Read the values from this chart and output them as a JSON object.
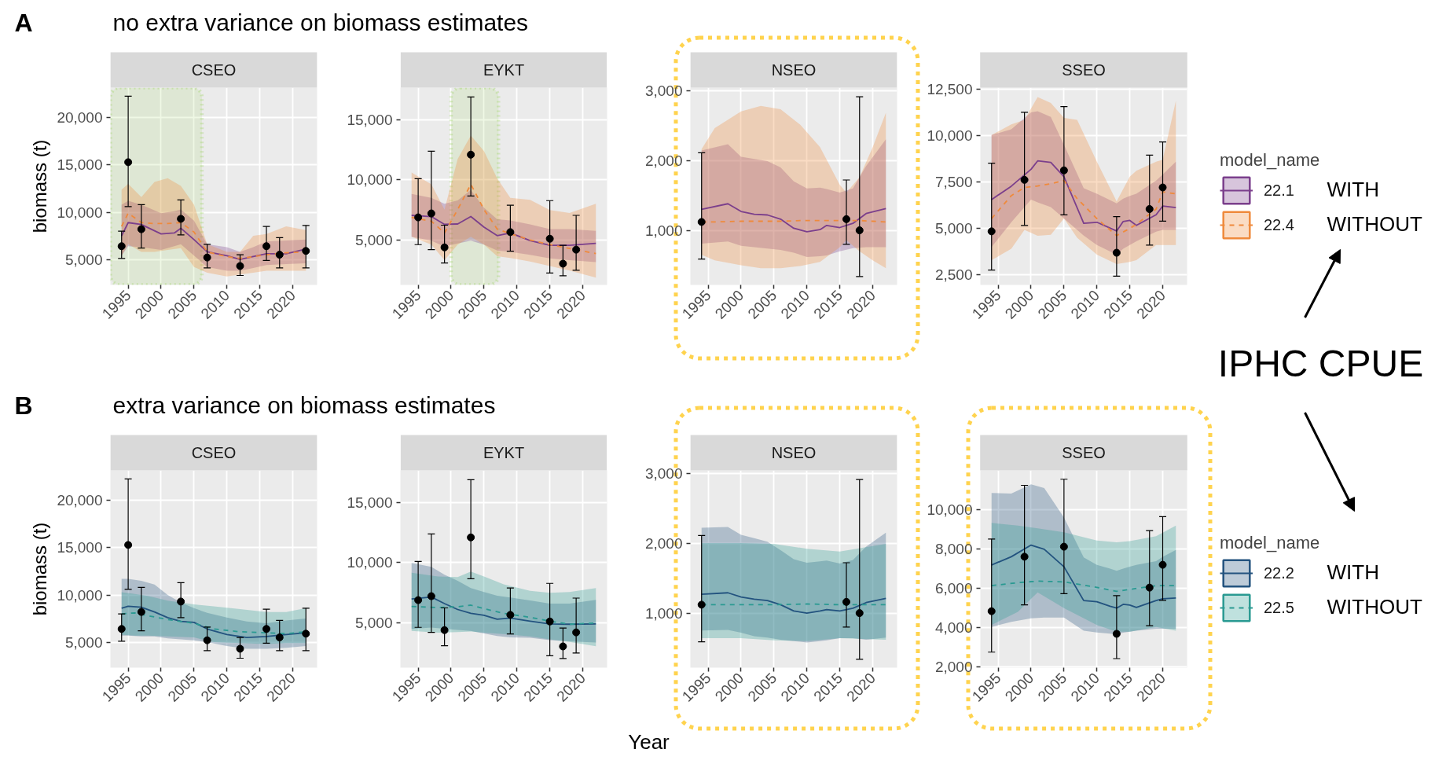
{
  "chart_data": [
    {
      "type": "line",
      "title": "CSEO",
      "ylabel": "biomass (t)",
      "annotations": [
        "A",
        "no extra variance on biomass estimates"
      ],
      "xlim": [
        1992.3,
        2023.7
      ],
      "xticks": [
        1995,
        2000,
        2005,
        2010,
        2015,
        2020
      ],
      "ylim": [
        2300,
        23200
      ],
      "yticks": [
        {
          "value": 5000,
          "label": "5,000"
        },
        {
          "value": 10000,
          "label": "10,000"
        },
        {
          "value": 15000,
          "label": "15,000"
        },
        {
          "value": 20000,
          "label": "20,000"
        }
      ],
      "grid": true,
      "bands": [
        {
          "axis": "x",
          "from": 1992.3,
          "to": 2006.2,
          "color": "#92d050"
        }
      ],
      "series": [
        {
          "color": "#7b3f8c",
          "line_style": "solid",
          "x": [
            1994,
            1995,
            1997,
            2000,
            2002,
            2003,
            2005,
            2007,
            2010,
            2012,
            2014,
            2016,
            2019,
            2022
          ],
          "values": [
            7500,
            8900,
            8700,
            7700,
            7800,
            8300,
            7100,
            5800,
            5400,
            5000,
            5300,
            5600,
            5600,
            6100
          ],
          "lower": [
            5400,
            6400,
            6300,
            6000,
            6400,
            6600,
            5400,
            4200,
            3800,
            3800,
            4100,
            4400,
            4500,
            4600
          ],
          "upper": [
            10800,
            11200,
            10800,
            9900,
            10100,
            10300,
            9100,
            6600,
            6300,
            5800,
            6300,
            6900,
            7000,
            7100
          ]
        },
        {
          "color": "#ef8a3c",
          "line_style": "dashed",
          "x": [
            1994,
            1995,
            1997,
            1999,
            2001,
            2003,
            2005,
            2007,
            2010,
            2012,
            2014,
            2016,
            2019,
            2022
          ],
          "values": [
            8500,
            9900,
            8900,
            8800,
            8800,
            8900,
            7900,
            5800,
            5300,
            5100,
            5300,
            5500,
            5700,
            5800
          ],
          "lower": [
            5400,
            6600,
            5800,
            5800,
            6000,
            6200,
            4200,
            3600,
            3200,
            3400,
            3600,
            3800,
            3800,
            3800
          ],
          "upper": [
            12400,
            13000,
            11600,
            13200,
            13600,
            12800,
            10800,
            6600,
            5800,
            5800,
            7500,
            7700,
            8500,
            8100
          ]
        },
        {
          "type": "scatter",
          "color": "#000000",
          "marker": "circle",
          "x": [
            1994,
            1995,
            1997,
            2003,
            2007,
            2012,
            2016,
            2018,
            2022
          ],
          "values": [
            6400,
            15300,
            8200,
            9300,
            5200,
            4300,
            6400,
            5500,
            5900
          ],
          "errors": [
            [
              5100,
              8000
            ],
            [
              10600,
              22300
            ],
            [
              6200,
              10800
            ],
            [
              7600,
              11300
            ],
            [
              4100,
              6600
            ],
            [
              3300,
              5500
            ],
            [
              4900,
              8500
            ],
            [
              4100,
              7300
            ],
            [
              4100,
              8600
            ]
          ]
        }
      ]
    },
    {
      "type": "line",
      "title": "EYKT",
      "xlim": [
        1992.3,
        2023.7
      ],
      "xticks": [
        1995,
        2000,
        2005,
        2010,
        2015,
        2020
      ],
      "ylim": [
        1250,
        17700
      ],
      "yticks": [
        {
          "value": 5000,
          "label": "5,000"
        },
        {
          "value": 10000,
          "label": "10,000"
        },
        {
          "value": 15000,
          "label": "15,000"
        }
      ],
      "grid": true,
      "bands": [
        {
          "axis": "x",
          "from": 2000,
          "to": 2007.2,
          "color": "#92d050"
        }
      ],
      "series": [
        {
          "color": "#7b3f8c",
          "line_style": "solid",
          "x": [
            1994,
            1997,
            1999,
            2001,
            2003,
            2005,
            2007,
            2009,
            2012,
            2015,
            2018,
            2022
          ],
          "values": [
            7050,
            6950,
            6300,
            6330,
            6950,
            6070,
            5360,
            5580,
            4940,
            4550,
            4550,
            4710
          ],
          "lower": [
            5260,
            4940,
            4450,
            4700,
            4940,
            4610,
            4120,
            4000,
            3750,
            3470,
            3310,
            3150
          ],
          "upper": [
            8830,
            8510,
            8020,
            8300,
            9160,
            7690,
            6720,
            6620,
            6300,
            5910,
            5910,
            5750
          ]
        },
        {
          "color": "#ef8a3c",
          "line_style": "dashed",
          "x": [
            1994,
            1997,
            1999,
            2001,
            2003,
            2005,
            2007,
            2009,
            2012,
            2015,
            2018,
            2022
          ],
          "values": [
            6880,
            6560,
            5580,
            7530,
            9640,
            7530,
            5910,
            5520,
            5000,
            4610,
            4290,
            3860
          ],
          "lower": [
            5260,
            4610,
            3310,
            4610,
            5260,
            4610,
            3640,
            3500,
            3200,
            2820,
            2450,
            1850
          ],
          "upper": [
            10620,
            9640,
            7530,
            11750,
            13700,
            12400,
            10130,
            8510,
            8340,
            7500,
            7250,
            8020
          ]
        },
        {
          "type": "scatter",
          "color": "#000000",
          "marker": "circle",
          "x": [
            1995,
            1997,
            1999,
            2003,
            2009,
            2015,
            2017,
            2019
          ],
          "values": [
            6880,
            7210,
            4380,
            12110,
            5650,
            5100,
            3020,
            4190
          ],
          "errors": [
            [
              4610,
              10100
            ],
            [
              4190,
              12400
            ],
            [
              3080,
              6230
            ],
            [
              8670,
              16920
            ],
            [
              4060,
              7890
            ],
            [
              2240,
              8280
            ],
            [
              2010,
              4550
            ],
            [
              2470,
              7050
            ]
          ]
        }
      ]
    },
    {
      "type": "line",
      "title": "NSEO",
      "xlim": [
        1992.3,
        2023.7
      ],
      "xticks": [
        1995,
        2000,
        2005,
        2010,
        2015,
        2020
      ],
      "ylim": [
        220,
        3040
      ],
      "yticks": [
        {
          "value": 1000,
          "label": "1,000"
        },
        {
          "value": 2000,
          "label": "2,000"
        },
        {
          "value": 3000,
          "label": "3,000"
        }
      ],
      "grid": true,
      "series": [
        {
          "color": "#7b3f8c",
          "line_style": "solid",
          "x": [
            1994,
            1998,
            2000,
            2002,
            2004,
            2006,
            2008,
            2010,
            2012,
            2013,
            2015,
            2017,
            2019,
            2022
          ],
          "values": [
            1300,
            1380,
            1270,
            1230,
            1220,
            1160,
            1030,
            980,
            1010,
            1070,
            1040,
            1100,
            1240,
            1310
          ],
          "lower": [
            810,
            840,
            780,
            760,
            740,
            720,
            680,
            620,
            630,
            640,
            700,
            745,
            760,
            760
          ],
          "upper": [
            2140,
            2230,
            2050,
            2020,
            1990,
            1900,
            1700,
            1600,
            1610,
            1590,
            1540,
            1600,
            1920,
            2300
          ]
        },
        {
          "color": "#ef8a3c",
          "line_style": "dashed",
          "x": [
            1994,
            1996,
            2000,
            2003,
            2006,
            2009,
            2012,
            2015,
            2016,
            2018,
            2020,
            2022
          ],
          "values": [
            1120,
            1120,
            1130,
            1130,
            1130,
            1140,
            1140,
            1140,
            1140,
            1140,
            1130,
            1120
          ],
          "lower": [
            650,
            570,
            500,
            460,
            460,
            490,
            550,
            760,
            860,
            700,
            570,
            460
          ],
          "upper": [
            2160,
            2460,
            2700,
            2780,
            2730,
            2510,
            2190,
            1650,
            1540,
            1760,
            2190,
            2680
          ]
        },
        {
          "type": "scatter",
          "color": "#000000",
          "marker": "circle",
          "x": [
            1994,
            2016,
            2018
          ],
          "values": [
            1120,
            1160,
            1000
          ],
          "errors": [
            [
              590,
              2110
            ],
            [
              800,
              1720
            ],
            [
              340,
              2910
            ]
          ]
        }
      ]
    },
    {
      "type": "line",
      "title": "SSEO",
      "legend": "right",
      "legend_title": "model_name",
      "annotations": [
        "WITH",
        "WITHOUT",
        "IPHC CPUE"
      ],
      "xlim": [
        1992.3,
        2023.7
      ],
      "xticks": [
        1995,
        2000,
        2005,
        2010,
        2015,
        2020
      ],
      "ylim": [
        1960,
        12570
      ],
      "yticks": [
        {
          "value": 2500,
          "label": "2,500"
        },
        {
          "value": 5000,
          "label": "5,000"
        },
        {
          "value": 7500,
          "label": "7,500"
        },
        {
          "value": 10000,
          "label": "10,000"
        },
        {
          "value": 12500,
          "label": "12,500"
        }
      ],
      "grid": true,
      "series": [
        {
          "name": "22.1",
          "color": "#7b3f8c",
          "line_style": "solid",
          "x": [
            1994,
            1997,
            2000,
            2001,
            2003,
            2005,
            2008,
            2010,
            2013,
            2014,
            2015,
            2016,
            2019,
            2020,
            2022
          ],
          "values": [
            6550,
            7270,
            8180,
            8630,
            8550,
            7780,
            5270,
            5330,
            4860,
            5370,
            5430,
            5160,
            5730,
            6200,
            6120
          ],
          "lower": [
            4000,
            5330,
            6550,
            6400,
            6140,
            5530,
            4610,
            4100,
            3590,
            3900,
            4100,
            4310,
            4820,
            4920,
            4920
          ],
          "upper": [
            10020,
            10330,
            11240,
            11300,
            11000,
            9500,
            7160,
            6860,
            6350,
            6600,
            6750,
            6860,
            7570,
            7900,
            8590
          ]
        },
        {
          "name": "22.4",
          "color": "#ef8a3c",
          "line_style": "dashed",
          "x": [
            1994,
            1997,
            1999,
            2001,
            2003,
            2005,
            2007,
            2010,
            2013,
            2015,
            2016,
            2019,
            2020,
            2022
          ],
          "values": [
            5530,
            6760,
            7200,
            7280,
            7400,
            7570,
            6600,
            5530,
            4610,
            5000,
            5220,
            6040,
            6960,
            6860
          ],
          "lower": [
            3290,
            3900,
            4920,
            4600,
            4650,
            5530,
            4500,
            3590,
            3080,
            3200,
            3290,
            4100,
            4100,
            4100
          ],
          "upper": [
            10020,
            10590,
            10840,
            12060,
            11750,
            10940,
            10840,
            8590,
            6450,
            7780,
            8100,
            8590,
            8690,
            11860
          ]
        },
        {
          "type": "scatter",
          "color": "#000000",
          "marker": "circle",
          "x": [
            1994,
            1999,
            2005,
            2013,
            2018,
            2020
          ],
          "values": [
            4840,
            7610,
            8120,
            3690,
            6040,
            7200
          ],
          "errors": [
            [
              2760,
              8510
            ],
            [
              5160,
              11240
            ],
            [
              5730,
              11550
            ],
            [
              2430,
              5630
            ],
            [
              4100,
              8940
            ],
            [
              5390,
              9650
            ]
          ]
        }
      ]
    },
    {
      "type": "line",
      "title": "CSEO",
      "ylabel": "biomass (t)",
      "annotations": [
        "B",
        "extra variance on biomass estimates"
      ],
      "xlim": [
        1992.3,
        2023.7
      ],
      "xticks": [
        1995,
        2000,
        2005,
        2010,
        2015,
        2020
      ],
      "ylim": [
        2300,
        23200
      ],
      "yticks": [
        {
          "value": 5000,
          "label": "5,000"
        },
        {
          "value": 10000,
          "label": "10,000"
        },
        {
          "value": 15000,
          "label": "15,000"
        },
        {
          "value": 20000,
          "label": "20,000"
        }
      ],
      "grid": true,
      "series": [
        {
          "color": "#23537f",
          "line_style": "solid",
          "x": [
            1994,
            1995,
            1997,
            1999,
            2001,
            2003,
            2005,
            2007,
            2010,
            2013,
            2016,
            2019,
            2022
          ],
          "values": [
            8600,
            8800,
            8700,
            8200,
            7600,
            7200,
            7100,
            6400,
            5800,
            5500,
            5600,
            5800,
            6000
          ],
          "lower": [
            5700,
            5700,
            5600,
            5600,
            5400,
            5300,
            5200,
            5000,
            4600,
            4300,
            4300,
            4400,
            4600
          ],
          "upper": [
            11700,
            11700,
            11500,
            11100,
            10000,
            9200,
            8600,
            8100,
            7600,
            7200,
            7000,
            7300,
            7500
          ]
        },
        {
          "color": "#2a9a92",
          "line_style": "dashed",
          "x": [
            1994,
            1996,
            1998,
            2001,
            2005,
            2008,
            2012,
            2016,
            2019,
            2022
          ],
          "values": [
            8000,
            8100,
            7800,
            7400,
            7000,
            6400,
            6100,
            6000,
            5900,
            6100
          ],
          "lower": [
            5800,
            5700,
            5700,
            5600,
            5500,
            5000,
            4900,
            4800,
            4900,
            4900
          ],
          "upper": [
            10300,
            10100,
            9900,
            9400,
            9000,
            8800,
            8500,
            8200,
            8200,
            8600
          ]
        },
        {
          "type": "scatter",
          "color": "#000000",
          "marker": "circle",
          "x": [
            1994,
            1995,
            1997,
            2003,
            2007,
            2012,
            2016,
            2018,
            2022
          ],
          "values": [
            6400,
            15300,
            8200,
            9300,
            5200,
            4300,
            6400,
            5500,
            5900
          ],
          "errors": [
            [
              5100,
              8000
            ],
            [
              10600,
              22300
            ],
            [
              6200,
              10800
            ],
            [
              7600,
              11300
            ],
            [
              4100,
              6600
            ],
            [
              3300,
              5500
            ],
            [
              4900,
              8500
            ],
            [
              4100,
              7300
            ],
            [
              4100,
              8600
            ]
          ]
        }
      ]
    },
    {
      "type": "line",
      "title": "EYKT",
      "xlim": [
        1992.3,
        2023.7
      ],
      "xticks": [
        1995,
        2000,
        2005,
        2010,
        2015,
        2020
      ],
      "ylim": [
        1250,
        17700
      ],
      "yticks": [
        {
          "value": 5000,
          "label": "5,000"
        },
        {
          "value": 10000,
          "label": "10,000"
        },
        {
          "value": 15000,
          "label": "15,000"
        }
      ],
      "grid": true,
      "series": [
        {
          "color": "#23537f",
          "line_style": "solid",
          "x": [
            1994,
            1997,
            1999,
            2001,
            2003,
            2005,
            2007,
            2009,
            2012,
            2015,
            2018,
            2022
          ],
          "values": [
            6970,
            7140,
            6590,
            6100,
            5780,
            5610,
            5290,
            5390,
            5130,
            4900,
            4870,
            4900
          ],
          "lower": [
            4480,
            4600,
            4500,
            4400,
            4320,
            4100,
            3880,
            3770,
            3740,
            3550,
            3450,
            3350
          ],
          "upper": [
            9980,
            9660,
            9000,
            8500,
            7880,
            7550,
            7250,
            7100,
            6850,
            6590,
            6590,
            6910
          ]
        },
        {
          "color": "#2a9a92",
          "line_style": "dashed",
          "x": [
            1994,
            1998,
            2001,
            2003,
            2005,
            2008,
            2012,
            2015,
            2018,
            2022
          ],
          "values": [
            6360,
            6260,
            6330,
            6460,
            6170,
            5780,
            5450,
            5130,
            4870,
            4970
          ],
          "lower": [
            4320,
            4160,
            4220,
            4260,
            4160,
            4050,
            3850,
            3610,
            3400,
            3030
          ],
          "upper": [
            9170,
            8850,
            8800,
            9270,
            8850,
            8200,
            7650,
            7490,
            7560,
            7880
          ]
        },
        {
          "type": "scatter",
          "color": "#000000",
          "marker": "circle",
          "x": [
            1995,
            1997,
            1999,
            2003,
            2009,
            2015,
            2017,
            2019
          ],
          "values": [
            6880,
            7210,
            4380,
            12110,
            5650,
            5100,
            3020,
            4190
          ],
          "errors": [
            [
              4610,
              10100
            ],
            [
              4190,
              12400
            ],
            [
              3080,
              6230
            ],
            [
              8670,
              16920
            ],
            [
              4060,
              7890
            ],
            [
              2240,
              8280
            ],
            [
              2010,
              4550
            ],
            [
              2470,
              7050
            ]
          ]
        }
      ]
    },
    {
      "type": "line",
      "title": "NSEO",
      "xlabel": "Year",
      "xlim": [
        1992.3,
        2023.7
      ],
      "xticks": [
        1995,
        2000,
        2005,
        2010,
        2015,
        2020
      ],
      "ylim": [
        220,
        3040
      ],
      "yticks": [
        {
          "value": 1000,
          "label": "1,000"
        },
        {
          "value": 2000,
          "label": "2,000"
        },
        {
          "value": 3000,
          "label": "3,000"
        }
      ],
      "grid": true,
      "series": [
        {
          "color": "#23537f",
          "line_style": "solid",
          "x": [
            1994,
            1998,
            2000,
            2002,
            2004,
            2006,
            2008,
            2010,
            2012,
            2013,
            2015,
            2017,
            2019,
            2022
          ],
          "values": [
            1270,
            1290,
            1230,
            1200,
            1180,
            1120,
            1030,
            1000,
            1030,
            1050,
            1030,
            1070,
            1150,
            1210
          ],
          "lower": [
            750,
            760,
            720,
            670,
            650,
            620,
            600,
            580,
            600,
            610,
            640,
            640,
            620,
            650
          ],
          "upper": [
            2220,
            2230,
            2120,
            2070,
            2020,
            1900,
            1770,
            1720,
            1740,
            1750,
            1710,
            1760,
            1950,
            2150
          ]
        },
        {
          "color": "#2a9a92",
          "line_style": "dashed",
          "x": [
            1994,
            2000,
            2005,
            2010,
            2015,
            2022
          ],
          "values": [
            1120,
            1120,
            1120,
            1130,
            1120,
            1120
          ],
          "lower": [
            640,
            640,
            610,
            600,
            640,
            620
          ],
          "upper": [
            2000,
            2000,
            1990,
            1920,
            1880,
            1990
          ]
        },
        {
          "type": "scatter",
          "color": "#000000",
          "marker": "circle",
          "x": [
            1994,
            2016,
            2018
          ],
          "values": [
            1120,
            1160,
            1000
          ],
          "errors": [
            [
              590,
              2110
            ],
            [
              800,
              1720
            ],
            [
              340,
              2910
            ]
          ]
        }
      ]
    },
    {
      "type": "line",
      "title": "SSEO",
      "legend": "right",
      "legend_title": "model_name",
      "annotations": [
        "WITH",
        "WITHOUT"
      ],
      "xlim": [
        1992.3,
        2023.7
      ],
      "xticks": [
        1995,
        2000,
        2005,
        2010,
        2015,
        2020
      ],
      "ylim": [
        1970,
        12000
      ],
      "yticks": [
        {
          "value": 2000,
          "label": "2,000"
        },
        {
          "value": 4000,
          "label": "4,000"
        },
        {
          "value": 6000,
          "label": "6,000"
        },
        {
          "value": 8000,
          "label": "8,000"
        },
        {
          "value": 10000,
          "label": "10,000"
        }
      ],
      "grid": true,
      "series": [
        {
          "name": "22.2",
          "color": "#23537f",
          "line_style": "solid",
          "x": [
            1994,
            1997,
            2000,
            2002,
            2005,
            2008,
            2010,
            2012,
            2013,
            2014,
            2015,
            2016,
            2019,
            2020,
            2022
          ],
          "values": [
            7190,
            7610,
            8200,
            7990,
            7100,
            5380,
            5320,
            5090,
            5000,
            5190,
            5150,
            5030,
            5380,
            5470,
            5510
          ],
          "lower": [
            4040,
            4300,
            4480,
            4520,
            4520,
            3850,
            3760,
            3700,
            3660,
            3750,
            3800,
            3850,
            3950,
            3950,
            3950
          ],
          "upper": [
            10850,
            10820,
            11290,
            11100,
            9600,
            7570,
            7190,
            7000,
            6900,
            7000,
            7100,
            7190,
            7380,
            7600,
            7950
          ]
        },
        {
          "name": "22.5",
          "color": "#2a9a92",
          "line_style": "dashed",
          "x": [
            1994,
            1998,
            2001,
            2005,
            2010,
            2013,
            2015,
            2019,
            2022
          ],
          "values": [
            6140,
            6290,
            6370,
            6330,
            6050,
            5850,
            5950,
            6140,
            6140
          ],
          "lower": [
            4140,
            4810,
            5800,
            5000,
            4140,
            3800,
            3800,
            4040,
            3850
          ],
          "upper": [
            9330,
            9190,
            9050,
            8850,
            8430,
            8340,
            8400,
            8650,
            9190
          ]
        },
        {
          "type": "scatter",
          "color": "#000000",
          "marker": "circle",
          "x": [
            1994,
            1999,
            2005,
            2013,
            2018,
            2020
          ],
          "values": [
            4840,
            7610,
            8120,
            3690,
            6040,
            7200
          ],
          "errors": [
            [
              2760,
              8510
            ],
            [
              5160,
              11240
            ],
            [
              5730,
              11550
            ],
            [
              2430,
              5630
            ],
            [
              4100,
              8940
            ],
            [
              5390,
              9650
            ]
          ]
        }
      ]
    }
  ]
}
